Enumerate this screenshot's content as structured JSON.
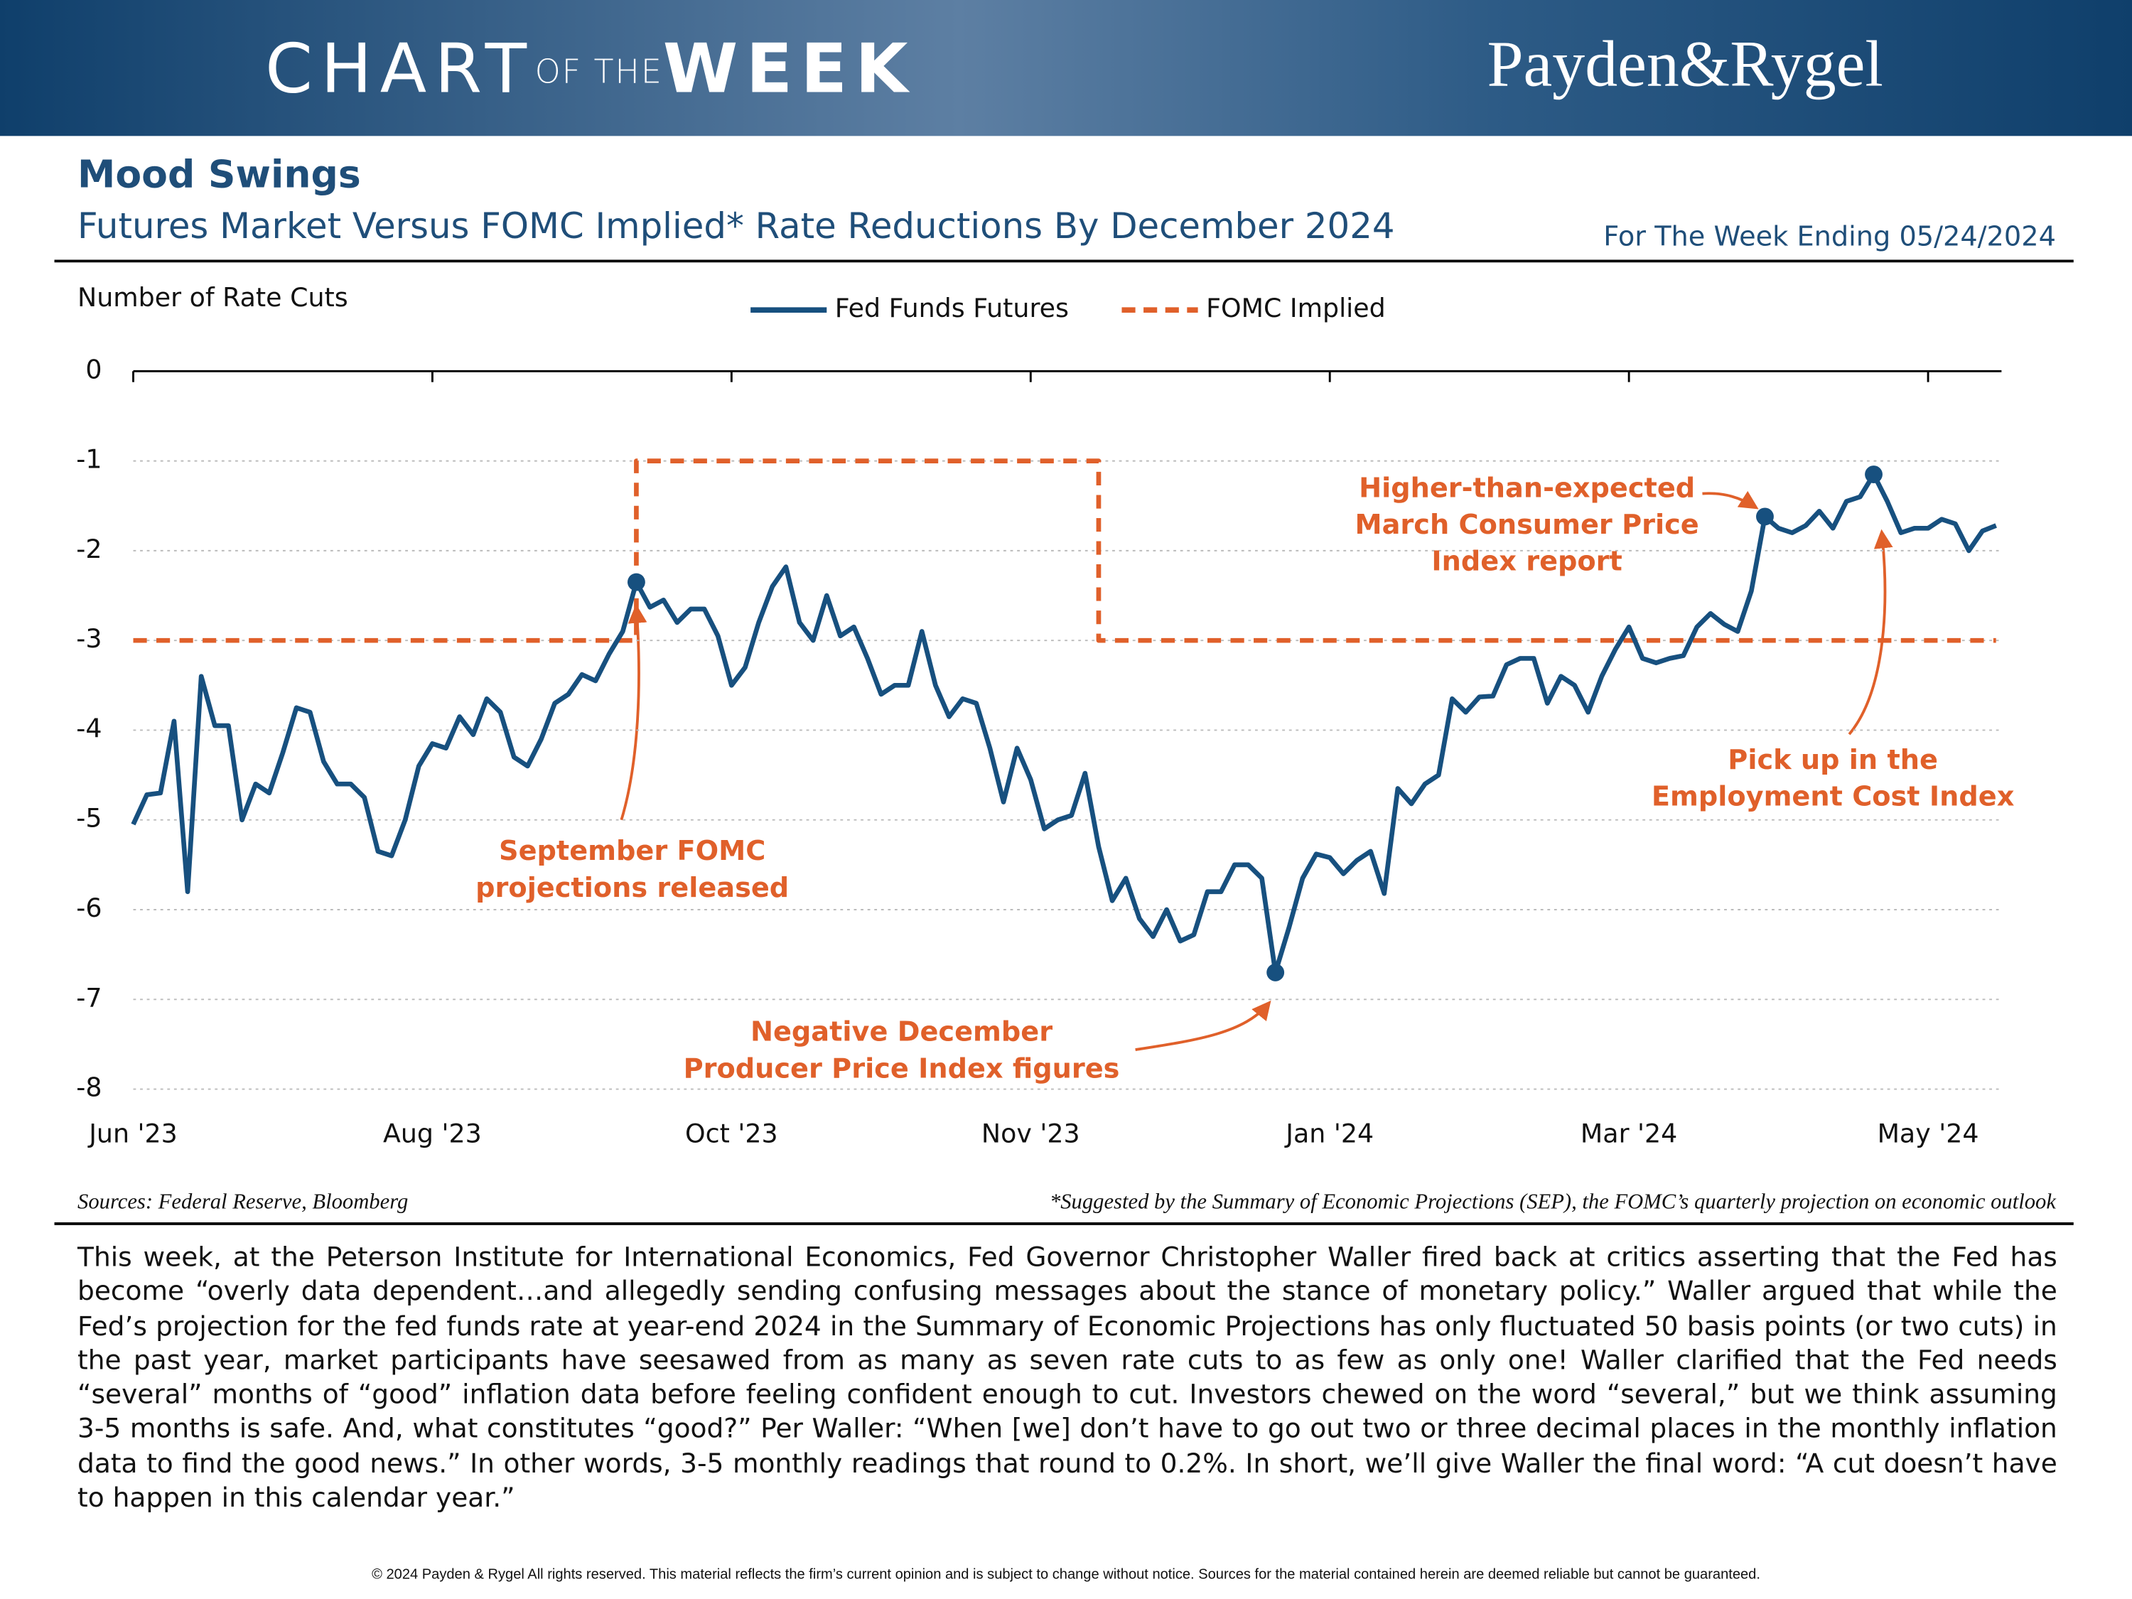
{
  "header": {
    "logo": [
      "CHART",
      "OF THE",
      "WEEK"
    ],
    "brand": "Payden&Rygel"
  },
  "chart_data": {
    "type": "line",
    "title": "Mood Swings",
    "subtitle": "Futures Market Versus FOMC Implied* Rate Reductions By December 2024",
    "date_note": "For The Week Ending 05/24/2024",
    "y_label": "Number of Rate Cuts",
    "xlim": [
      0,
      137
    ],
    "xticks": [
      {
        "value": 0,
        "label": "Jun '23"
      },
      {
        "value": 22,
        "label": "Aug '23"
      },
      {
        "value": 44,
        "label": "Oct '23"
      },
      {
        "value": 66,
        "label": "Nov '23"
      },
      {
        "value": 88,
        "label": "Jan '24"
      },
      {
        "value": 110,
        "label": "Mar '24"
      },
      {
        "value": 132,
        "label": "May '24"
      }
    ],
    "ylim": [
      -8,
      0
    ],
    "yticks": [
      0,
      -1,
      -2,
      -3,
      -4,
      -5,
      -6,
      -7,
      -8
    ],
    "grid": true,
    "legend": "top",
    "series": [
      {
        "name": "Fed Funds Futures",
        "color": "#17507f",
        "style": "solid",
        "values": [
          -5.05,
          -4.72,
          -4.7,
          -3.9,
          -5.8,
          -3.4,
          -3.95,
          -3.95,
          -5.0,
          -4.6,
          -4.7,
          -4.25,
          -3.75,
          -3.8,
          -4.35,
          -4.6,
          -4.6,
          -4.75,
          -5.35,
          -5.4,
          -5.0,
          -4.4,
          -4.15,
          -4.2,
          -3.85,
          -4.05,
          -3.65,
          -3.8,
          -4.3,
          -4.4,
          -4.1,
          -3.7,
          -3.6,
          -3.38,
          -3.45,
          -3.15,
          -2.9,
          -2.35,
          -2.63,
          -2.55,
          -2.8,
          -2.65,
          -2.65,
          -2.95,
          -3.5,
          -3.3,
          -2.8,
          -2.4,
          -2.18,
          -2.8,
          -3.0,
          -2.5,
          -2.95,
          -2.85,
          -3.2,
          -3.6,
          -3.5,
          -3.5,
          -2.9,
          -3.5,
          -3.85,
          -3.65,
          -3.7,
          -4.2,
          -4.8,
          -4.2,
          -4.55,
          -5.1,
          -5.0,
          -4.95,
          -4.48,
          -5.3,
          -5.9,
          -5.65,
          -6.1,
          -6.3,
          -6.0,
          -6.35,
          -6.28,
          -5.8,
          -5.8,
          -5.5,
          -5.5,
          -5.65,
          -6.7,
          -6.2,
          -5.65,
          -5.38,
          -5.42,
          -5.6,
          -5.45,
          -5.35,
          -5.82,
          -4.65,
          -4.82,
          -4.6,
          -4.5,
          -3.65,
          -3.8,
          -3.63,
          -3.62,
          -3.27,
          -3.2,
          -3.2,
          -3.7,
          -3.4,
          -3.5,
          -3.8,
          -3.4,
          -3.1,
          -2.85,
          -3.2,
          -3.25,
          -3.2,
          -3.17,
          -2.85,
          -2.7,
          -2.82,
          -2.9,
          -2.45,
          -1.62,
          -1.75,
          -1.8,
          -1.72,
          -1.56,
          -1.75,
          -1.45,
          -1.4,
          -1.15,
          -1.45,
          -1.8,
          -1.75,
          -1.75,
          -1.65,
          -1.7,
          -2.0,
          -1.78,
          -1.72
        ]
      },
      {
        "name": "FOMC Implied",
        "color": "#e0602a",
        "style": "dashed",
        "values": [
          -3,
          -3,
          -3,
          -3,
          -3,
          -3,
          -3,
          -3,
          -3,
          -3,
          -3,
          -3,
          -3,
          -3,
          -3,
          -3,
          -3,
          -3,
          -3,
          -3,
          -3,
          -3,
          -3,
          -3,
          -3,
          -3,
          -3,
          -3,
          -3,
          -3,
          -3,
          -3,
          -3,
          -3,
          -3,
          -3,
          -3,
          -1,
          -1,
          -1,
          -1,
          -1,
          -1,
          -1,
          -1,
          -1,
          -1,
          -1,
          -1,
          -1,
          -1,
          -1,
          -1,
          -1,
          -1,
          -1,
          -1,
          -1,
          -1,
          -1,
          -1,
          -1,
          -1,
          -1,
          -1,
          -1,
          -1,
          -1,
          -1,
          -1,
          -1,
          -3,
          -3,
          -3,
          -3,
          -3,
          -3,
          -3,
          -3,
          -3,
          -3,
          -3,
          -3,
          -3,
          -3,
          -3,
          -3,
          -3,
          -3,
          -3,
          -3,
          -3,
          -3,
          -3,
          -3,
          -3,
          -3,
          -3,
          -3,
          -3,
          -3,
          -3,
          -3,
          -3,
          -3,
          -3,
          -3,
          -3,
          -3,
          -3,
          -3,
          -3,
          -3,
          -3,
          -3,
          -3,
          -3,
          -3,
          -3,
          -3,
          -3,
          -3,
          -3,
          -3,
          -3,
          -3,
          -3,
          -3,
          -3,
          -3,
          -3,
          -3,
          -3,
          -3,
          -3,
          -3,
          -3,
          -3
        ]
      }
    ],
    "annotations": [
      {
        "lines": [
          "September FOMC",
          "projections released"
        ]
      },
      {
        "lines": [
          "Negative December",
          "Producer Price Index figures"
        ]
      },
      {
        "lines": [
          "Higher-than-expected",
          "March Consumer Price",
          "Index report"
        ]
      },
      {
        "lines": [
          "Pick up in the",
          "Employment Cost Index"
        ]
      }
    ],
    "source": "Sources: Federal Reserve, Bloomberg",
    "footnote": "*Suggested by the Summary of Economic Projections (SEP), the FOMC’s quarterly projection on economic outlook"
  },
  "body": "This week, at the Peterson Institute for International Economics, Fed Governor Christopher Waller fired back at critics asserting that the Fed has become “overly data dependent…and allegedly sending confusing messages about the stance of monetary policy.” Waller argued that while the Fed’s projection for the fed funds rate at year-end 2024 in the Summary of Economic Projections has only fluctuated 50 basis points (or two cuts) in the past year, market participants have seesawed from as many as seven rate cuts to as few as only one! Waller clarified that the Fed needs “several” months of “good” inflation data before feeling confident enough to cut. Investors chewed on the word “several,” but we think assuming 3-5 months is safe. And, what constitutes “good?” Per Waller: “When [we] don’t have to go out two or three decimal places in the monthly inflation data to find the good news.” In other words, 3-5 monthly readings that round to 0.2%. In short, we’ll give Waller the final word: “A cut doesn’t have to happen in this calendar year.”",
  "footer": "© 2024 Payden & Rygel All rights reserved. This material reflects the firm’s current opinion and is subject to change without notice. Sources for the material contained herein are deemed reliable but cannot be guaranteed."
}
